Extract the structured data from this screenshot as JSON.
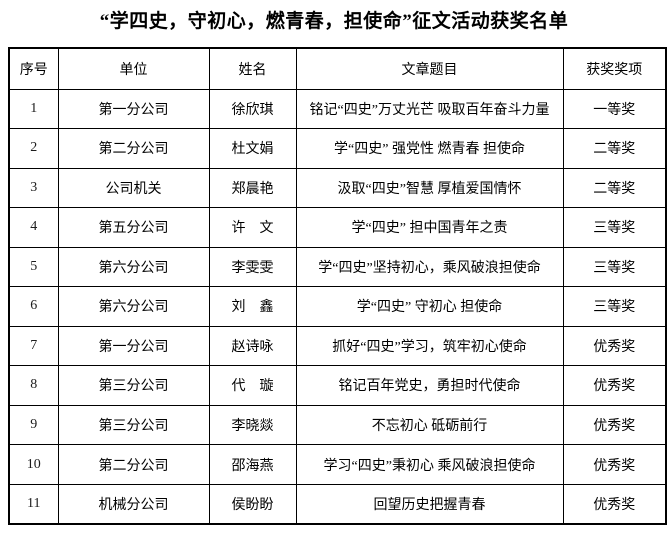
{
  "title": "“学四史，守初心，燃青春，担使命”征文活动获奖名单",
  "table": {
    "headers": [
      "序号",
      "单位",
      "姓名",
      "文章题目",
      "获奖奖项"
    ],
    "rows": [
      {
        "no": "1",
        "unit": "第一分公司",
        "name": "徐欣琪",
        "article": "铭记“四史”万丈光芒 吸取百年奋斗力量",
        "award": "一等奖"
      },
      {
        "no": "2",
        "unit": "第二分公司",
        "name": "杜文娟",
        "article": "学“四史” 强党性 燃青春 担使命",
        "award": "二等奖"
      },
      {
        "no": "3",
        "unit": "公司机关",
        "name": "郑晨艳",
        "article": "汲取“四史”智慧 厚植爱国情怀",
        "award": "二等奖"
      },
      {
        "no": "4",
        "unit": "第五分公司",
        "name": "许　文",
        "article": "学“四史” 担中国青年之责",
        "award": "三等奖"
      },
      {
        "no": "5",
        "unit": "第六分公司",
        "name": "李雯雯",
        "article": "学“四史”坚持初心，乘风破浪担使命",
        "award": "三等奖"
      },
      {
        "no": "6",
        "unit": "第六分公司",
        "name": "刘　鑫",
        "article": "学“四史” 守初心 担使命",
        "award": "三等奖"
      },
      {
        "no": "7",
        "unit": "第一分公司",
        "name": "赵诗咏",
        "article": "抓好“四史”学习，筑牢初心使命",
        "award": "优秀奖"
      },
      {
        "no": "8",
        "unit": "第三分公司",
        "name": "代　璇",
        "article": "铭记百年党史，勇担时代使命",
        "award": "优秀奖"
      },
      {
        "no": "9",
        "unit": "第三分公司",
        "name": "李晓燚",
        "article": "不忘初心 砥砺前行",
        "award": "优秀奖"
      },
      {
        "no": "10",
        "unit": "第二分公司",
        "name": "邵海燕",
        "article": "学习“四史”秉初心 乘风破浪担使命",
        "award": "优秀奖"
      },
      {
        "no": "11",
        "unit": "机械分公司",
        "name": "侯盼盼",
        "article": "回望历史把握青春",
        "award": "优秀奖"
      }
    ]
  }
}
